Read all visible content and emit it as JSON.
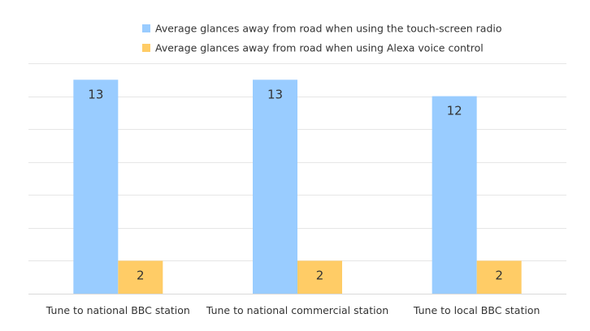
{
  "chart_data": {
    "type": "bar",
    "categories": [
      "Tune to national BBC station",
      "Tune to national commercial station",
      "Tune to local BBC station"
    ],
    "series": [
      {
        "name": "Average glances away from road when using the touch-screen radio",
        "values": [
          13,
          13,
          12
        ],
        "color": "#99ccff"
      },
      {
        "name": "Average glances away from road when using Alexa voice control",
        "values": [
          2,
          2,
          2
        ],
        "color": "#ffcc66"
      }
    ],
    "ylim": [
      0,
      14
    ],
    "grid": true,
    "legend_position": "top-center",
    "data_labels": true,
    "title": "",
    "xlabel": "",
    "ylabel": ""
  }
}
